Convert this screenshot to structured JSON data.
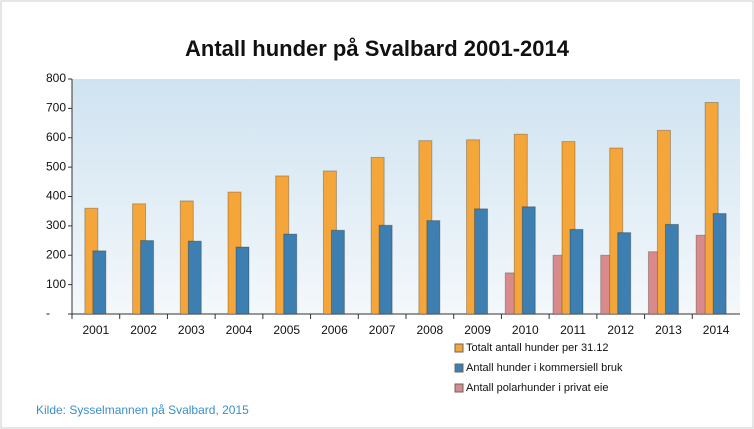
{
  "chart_data": {
    "type": "bar",
    "title": "Antall hunder på Svalbard 2001-2014",
    "source": "Kilde: Sysselmannen på Svalbard, 2015",
    "categories": [
      "2001",
      "2002",
      "2003",
      "2004",
      "2005",
      "2006",
      "2007",
      "2008",
      "2009",
      "2010",
      "2011",
      "2012",
      "2013",
      "2014"
    ],
    "series": [
      {
        "name": "Totalt antall hunder per 31.12",
        "color": "#f5a63a",
        "values": [
          360,
          375,
          385,
          415,
          470,
          487,
          533,
          590,
          593,
          612,
          587,
          565,
          625,
          720
        ]
      },
      {
        "name": "Antall hunder i kommersiell bruk",
        "color": "#3d7fb0",
        "values": [
          215,
          250,
          248,
          228,
          272,
          285,
          302,
          318,
          358,
          365,
          288,
          277,
          305,
          342
        ]
      },
      {
        "name": "Antall polarhunder i privat eie",
        "color": "#d98a8a",
        "values": [
          null,
          null,
          null,
          null,
          null,
          null,
          null,
          null,
          null,
          140,
          200,
          200,
          212,
          268
        ]
      }
    ],
    "ylim": [
      0,
      800
    ],
    "yticks": [
      {
        "value": 0,
        "label": "-"
      },
      100,
      200,
      300,
      400,
      500,
      600,
      700,
      800
    ],
    "grid": false
  }
}
